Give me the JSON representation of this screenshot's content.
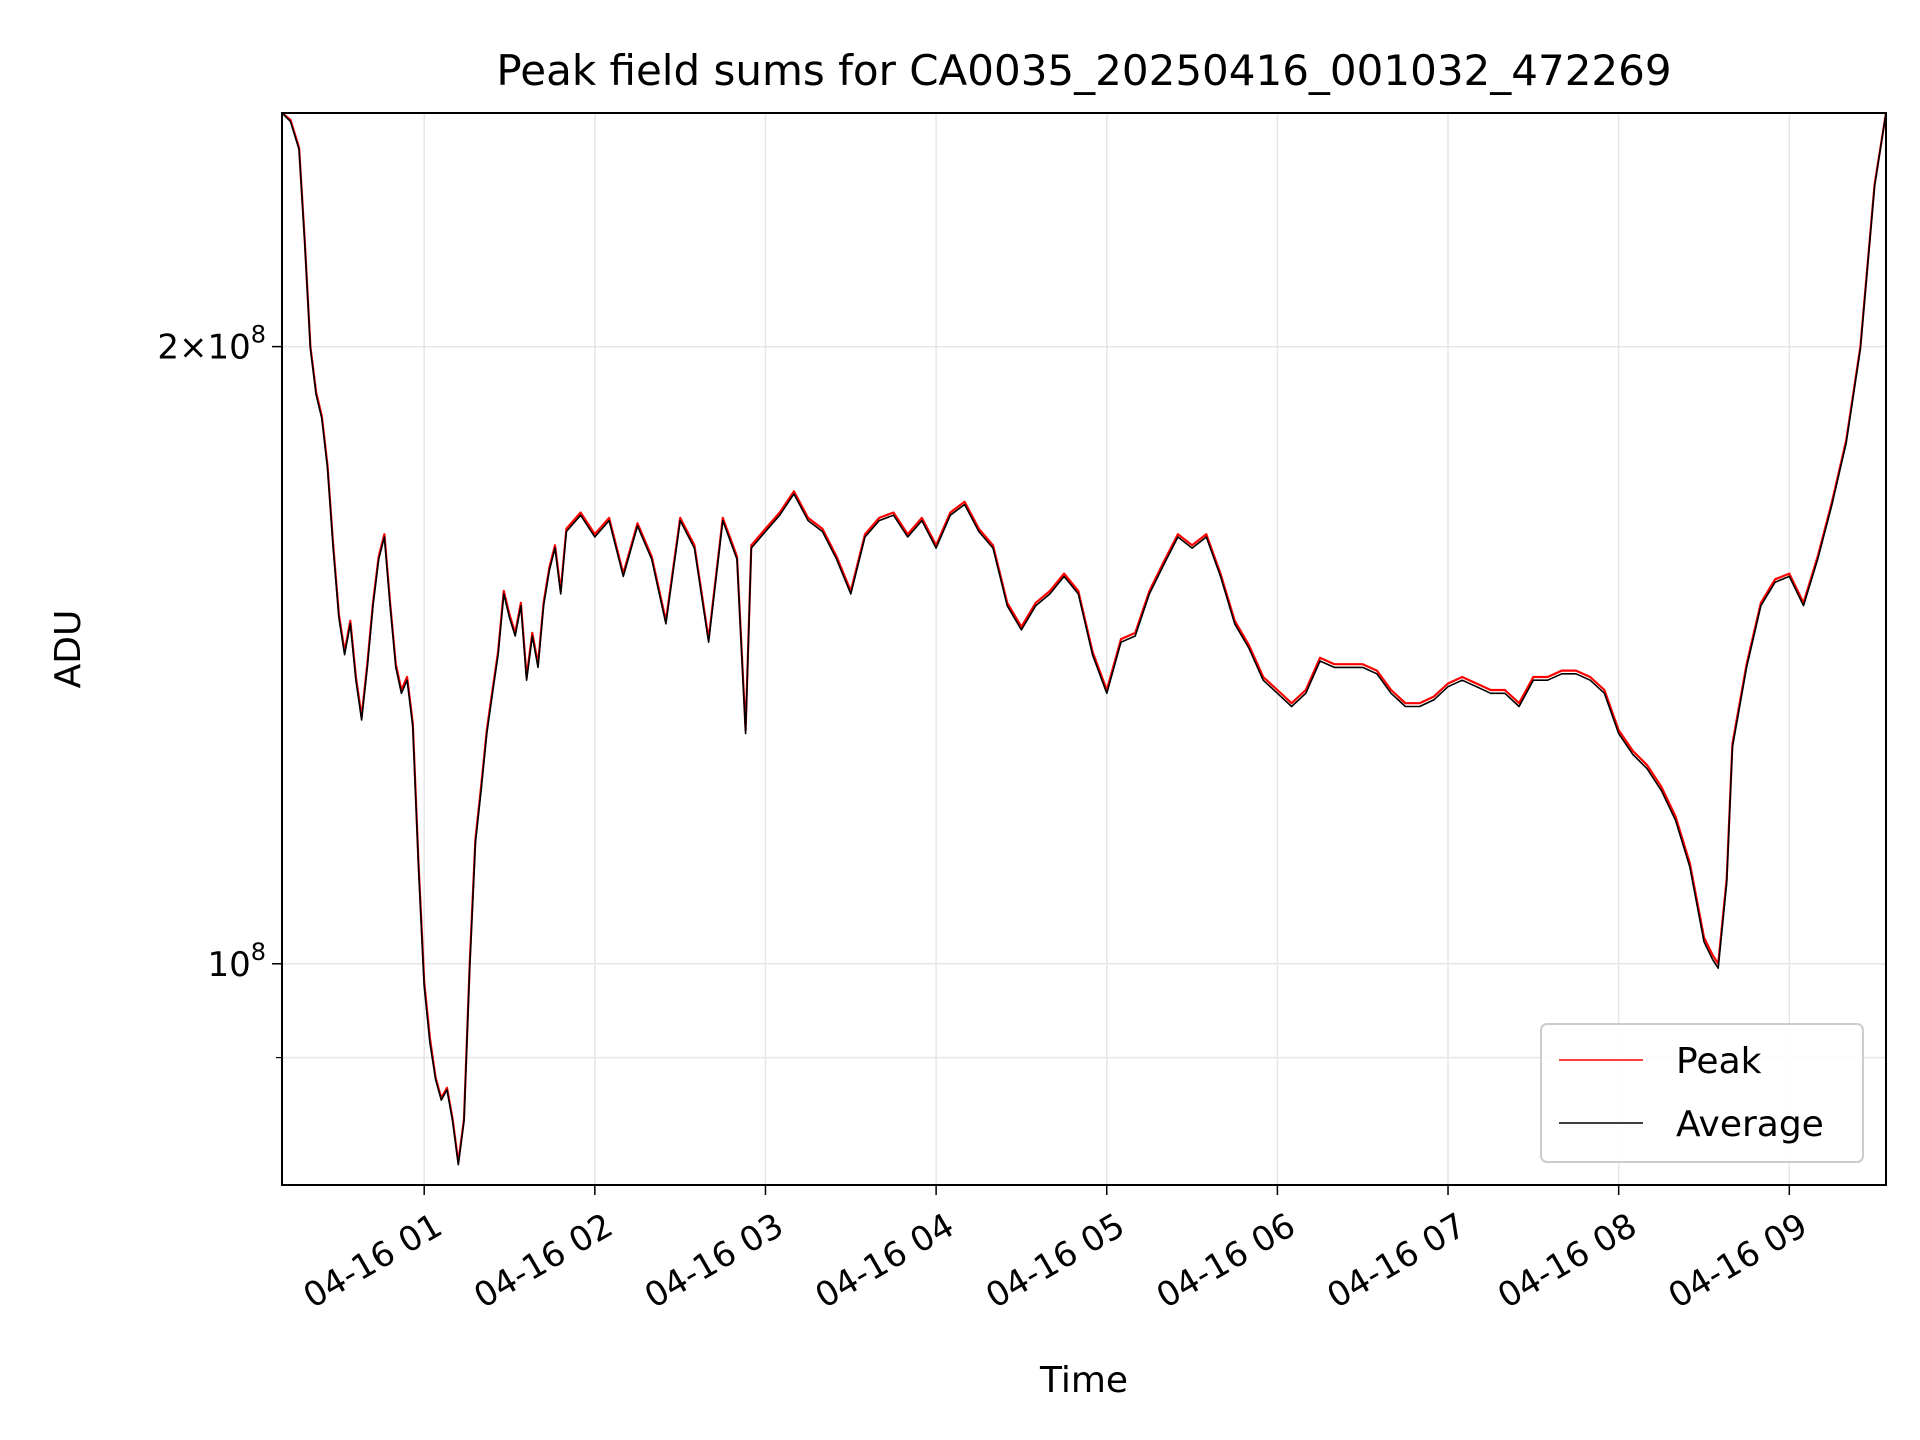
{
  "chart_data": {
    "type": "line",
    "title": "Peak field sums for CA0035_20250416_001032_472269",
    "xlabel": "Time",
    "ylabel": "ADU",
    "yscale": "log",
    "ylim": [
      78000000,
      260000000
    ],
    "xlim": [
      "04-16 00:10",
      "04-16 09:34"
    ],
    "grid": true,
    "legend_position": "lower right",
    "x_ticks": [
      "04-16 01",
      "04-16 02",
      "04-16 03",
      "04-16 04",
      "04-16 05",
      "04-16 06",
      "04-16 07",
      "04-16 08",
      "04-16 09"
    ],
    "y_major_ticks": [
      {
        "value": 200000000,
        "label_base": "2×10",
        "label_exp": "8"
      },
      {
        "value": 100000000,
        "label_base": "10",
        "label_exp": "8"
      }
    ],
    "y_minor_ticks": [
      90000000
    ],
    "x": [
      "04-16 00:10",
      "04-16 00:13",
      "04-16 00:16",
      "04-16 00:18",
      "04-16 00:20",
      "04-16 00:22",
      "04-16 00:24",
      "04-16 00:26",
      "04-16 00:28",
      "04-16 00:30",
      "04-16 00:32",
      "04-16 00:34",
      "04-16 00:36",
      "04-16 00:38",
      "04-16 00:40",
      "04-16 00:42",
      "04-16 00:44",
      "04-16 00:46",
      "04-16 00:48",
      "04-16 00:50",
      "04-16 00:52",
      "04-16 00:54",
      "04-16 00:56",
      "04-16 00:58",
      "04-16 01:00",
      "04-16 01:02",
      "04-16 01:04",
      "04-16 01:06",
      "04-16 01:08",
      "04-16 01:10",
      "04-16 01:12",
      "04-16 01:14",
      "04-16 01:16",
      "04-16 01:18",
      "04-16 01:20",
      "04-16 01:22",
      "04-16 01:24",
      "04-16 01:26",
      "04-16 01:28",
      "04-16 01:30",
      "04-16 01:32",
      "04-16 01:34",
      "04-16 01:36",
      "04-16 01:38",
      "04-16 01:40",
      "04-16 01:42",
      "04-16 01:44",
      "04-16 01:46",
      "04-16 01:48",
      "04-16 01:50",
      "04-16 01:55",
      "04-16 02:00",
      "04-16 02:05",
      "04-16 02:10",
      "04-16 02:15",
      "04-16 02:20",
      "04-16 02:25",
      "04-16 02:30",
      "04-16 02:35",
      "04-16 02:40",
      "04-16 02:45",
      "04-16 02:50",
      "04-16 02:53",
      "04-16 02:55",
      "04-16 03:00",
      "04-16 03:05",
      "04-16 03:10",
      "04-16 03:15",
      "04-16 03:20",
      "04-16 03:25",
      "04-16 03:30",
      "04-16 03:35",
      "04-16 03:40",
      "04-16 03:45",
      "04-16 03:50",
      "04-16 03:55",
      "04-16 04:00",
      "04-16 04:05",
      "04-16 04:10",
      "04-16 04:15",
      "04-16 04:20",
      "04-16 04:25",
      "04-16 04:30",
      "04-16 04:35",
      "04-16 04:40",
      "04-16 04:45",
      "04-16 04:50",
      "04-16 04:55",
      "04-16 05:00",
      "04-16 05:05",
      "04-16 05:10",
      "04-16 05:15",
      "04-16 05:20",
      "04-16 05:25",
      "04-16 05:30",
      "04-16 05:35",
      "04-16 05:40",
      "04-16 05:45",
      "04-16 05:50",
      "04-16 05:55",
      "04-16 06:00",
      "04-16 06:05",
      "04-16 06:10",
      "04-16 06:15",
      "04-16 06:20",
      "04-16 06:25",
      "04-16 06:30",
      "04-16 06:35",
      "04-16 06:40",
      "04-16 06:45",
      "04-16 06:50",
      "04-16 06:55",
      "04-16 07:00",
      "04-16 07:05",
      "04-16 07:10",
      "04-16 07:15",
      "04-16 07:20",
      "04-16 07:25",
      "04-16 07:30",
      "04-16 07:35",
      "04-16 07:40",
      "04-16 07:45",
      "04-16 07:50",
      "04-16 07:55",
      "04-16 08:00",
      "04-16 08:05",
      "04-16 08:10",
      "04-16 08:15",
      "04-16 08:20",
      "04-16 08:25",
      "04-16 08:30",
      "04-16 08:33",
      "04-16 08:35",
      "04-16 08:38",
      "04-16 08:40",
      "04-16 08:45",
      "04-16 08:50",
      "04-16 08:55",
      "04-16 09:00",
      "04-16 09:05",
      "04-16 09:10",
      "04-16 09:15",
      "04-16 09:20",
      "04-16 09:25",
      "04-16 09:30",
      "04-16 09:34"
    ],
    "series": [
      {
        "name": "Peak",
        "color": "#ff0000",
        "values": [
          260000000,
          258000000,
          250000000,
          225000000,
          200000000,
          190000000,
          185000000,
          175000000,
          160000000,
          148000000,
          142000000,
          147000000,
          138000000,
          132000000,
          140000000,
          150000000,
          158000000,
          162000000,
          150000000,
          140000000,
          136000000,
          138000000,
          131000000,
          112000000,
          98000000,
          92000000,
          88000000,
          86000000,
          87000000,
          84000000,
          80000000,
          84000000,
          100000000,
          115000000,
          122000000,
          130000000,
          136000000,
          142000000,
          152000000,
          148000000,
          145000000,
          150000000,
          138000000,
          145000000,
          140000000,
          150000000,
          156000000,
          160000000,
          152000000,
          163000000,
          166000000,
          162000000,
          165000000,
          155000000,
          164000000,
          158000000,
          147000000,
          165000000,
          160000000,
          144000000,
          165000000,
          158000000,
          130000000,
          160000000,
          163000000,
          166000000,
          170000000,
          165000000,
          163000000,
          158000000,
          152000000,
          162000000,
          165000000,
          166000000,
          162000000,
          165000000,
          160000000,
          166000000,
          168000000,
          163000000,
          160000000,
          150000000,
          146000000,
          150000000,
          152000000,
          155000000,
          152000000,
          142000000,
          136000000,
          144000000,
          145000000,
          152000000,
          157000000,
          162000000,
          160000000,
          162000000,
          155000000,
          147000000,
          143000000,
          138000000,
          136000000,
          134000000,
          136000000,
          141000000,
          140000000,
          140000000,
          140000000,
          139000000,
          136000000,
          134000000,
          134000000,
          135000000,
          137000000,
          138000000,
          137000000,
          136000000,
          136000000,
          134000000,
          138000000,
          138000000,
          139000000,
          139000000,
          138000000,
          136000000,
          130000000,
          127000000,
          125000000,
          122000000,
          118000000,
          112000000,
          103000000,
          101000000,
          100000000,
          110000000,
          128000000,
          140000000,
          150000000,
          154000000,
          155000000,
          150000000,
          158000000,
          168000000,
          180000000,
          200000000,
          240000000,
          260000000
        ]
      },
      {
        "name": "Average",
        "color": "#000000",
        "values": [
          260000000,
          257500000,
          249500000,
          224500000,
          199500000,
          189500000,
          184500000,
          174500000,
          159500000,
          147500000,
          141500000,
          146500000,
          137500000,
          131500000,
          139500000,
          149500000,
          157500000,
          161500000,
          149500000,
          139500000,
          135500000,
          137500000,
          130500000,
          111500000,
          97500000,
          91500000,
          87800000,
          85800000,
          86800000,
          83800000,
          79800000,
          83800000,
          99500000,
          114500000,
          121500000,
          129500000,
          135500000,
          141500000,
          151500000,
          147500000,
          144500000,
          149500000,
          137500000,
          144500000,
          139500000,
          149500000,
          155500000,
          159500000,
          151500000,
          162500000,
          165500000,
          161500000,
          164500000,
          154500000,
          163500000,
          157500000,
          146500000,
          164500000,
          159500000,
          143500000,
          164500000,
          157500000,
          129500000,
          159500000,
          162500000,
          165500000,
          169500000,
          164500000,
          162500000,
          157500000,
          151500000,
          161500000,
          164500000,
          165500000,
          161500000,
          164500000,
          159500000,
          165500000,
          167500000,
          162500000,
          159500000,
          149500000,
          145500000,
          149500000,
          151500000,
          154500000,
          151500000,
          141500000,
          135500000,
          143500000,
          144500000,
          151500000,
          156500000,
          161500000,
          159500000,
          161500000,
          154500000,
          146500000,
          142500000,
          137500000,
          135500000,
          133500000,
          135500000,
          140500000,
          139500000,
          139500000,
          139500000,
          138500000,
          135500000,
          133500000,
          133500000,
          134500000,
          136500000,
          137500000,
          136500000,
          135500000,
          135500000,
          133500000,
          137500000,
          137500000,
          138500000,
          138500000,
          137500000,
          135500000,
          129500000,
          126500000,
          124500000,
          121500000,
          117500000,
          111500000,
          102500000,
          100500000,
          99500000,
          109500000,
          127500000,
          139500000,
          149500000,
          153500000,
          154500000,
          149500000,
          157500000,
          167500000,
          179500000,
          199500000,
          239500000,
          260000000
        ]
      }
    ]
  }
}
